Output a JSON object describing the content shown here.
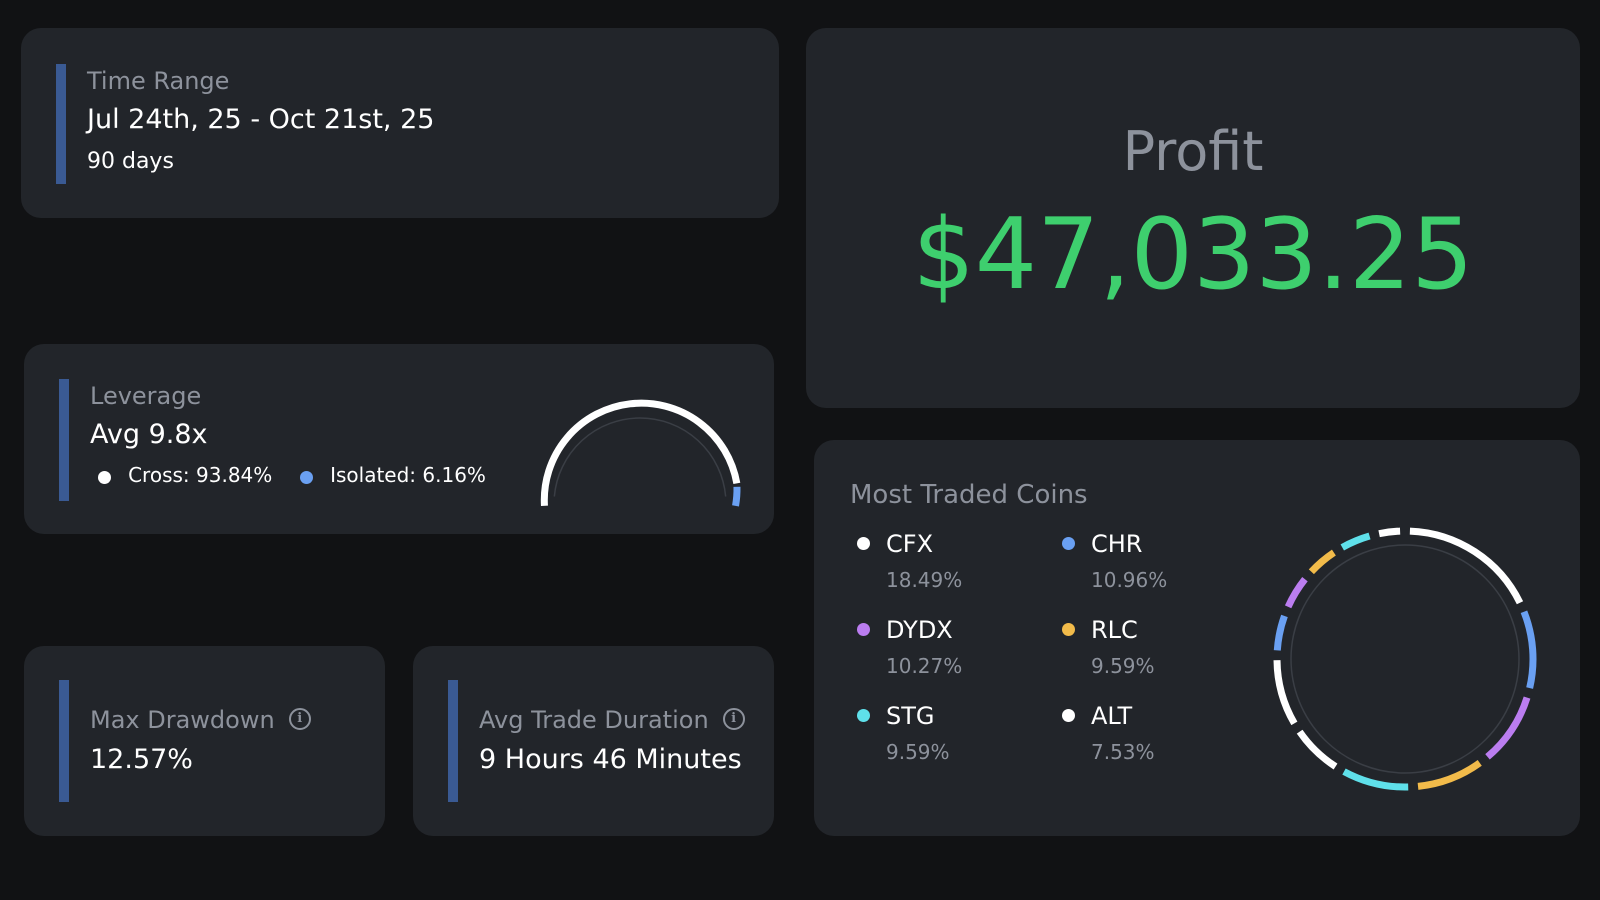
{
  "colors": {
    "background": "#111214",
    "card": "#22252a",
    "accent_bar": "#3a5a93",
    "profit_green": "#3ecf6e",
    "label_gray": "#8d929c"
  },
  "time_range": {
    "label": "Time Range",
    "value": "Jul 24th, 25 - Oct 21st, 25",
    "sub": "90 days"
  },
  "profit": {
    "label": "Profit",
    "value": "$47,033.25"
  },
  "leverage": {
    "label": "Leverage",
    "value": "Avg 9.8x",
    "cross_label": "Cross: 93.84%",
    "isolated_label": "Isolated: 6.16%",
    "cross_percent": 93.84,
    "isolated_percent": 6.16,
    "cross_color": "#ffffff",
    "isolated_color": "#6aa0f2"
  },
  "max_drawdown": {
    "label": "Max Drawdown",
    "value": "12.57%",
    "icon": "info-icon"
  },
  "avg_trade_duration": {
    "label": "Avg Trade Duration",
    "value": "9 Hours 46 Minutes",
    "icon": "info-icon"
  },
  "most_traded": {
    "title": "Most Traded Coins",
    "coins": [
      {
        "name": "CFX",
        "percent_label": "18.49%",
        "percent": 18.49,
        "color": "#ffffff"
      },
      {
        "name": "CHR",
        "percent_label": "10.96%",
        "percent": 10.96,
        "color": "#6aa0f2"
      },
      {
        "name": "DYDX",
        "percent_label": "10.27%",
        "percent": 10.27,
        "color": "#bb7df0"
      },
      {
        "name": "RLC",
        "percent_label": "9.59%",
        "percent": 9.59,
        "color": "#f2bb4a"
      },
      {
        "name": "STG",
        "percent_label": "9.59%",
        "percent": 9.59,
        "color": "#5fe0ea"
      },
      {
        "name": "ALT",
        "percent_label": "7.53%",
        "percent": 7.53,
        "color": "#ffffff"
      }
    ]
  }
}
